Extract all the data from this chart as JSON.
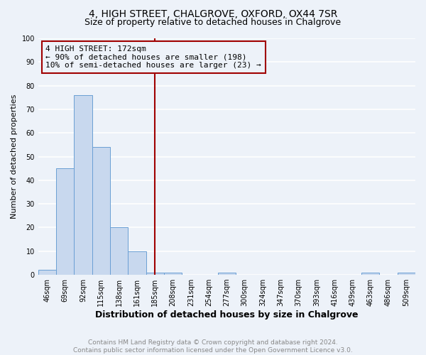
{
  "title": "4, HIGH STREET, CHALGROVE, OXFORD, OX44 7SR",
  "subtitle": "Size of property relative to detached houses in Chalgrove",
  "xlabel": "Distribution of detached houses by size in Chalgrove",
  "ylabel": "Number of detached properties",
  "bin_labels": [
    "46sqm",
    "69sqm",
    "92sqm",
    "115sqm",
    "138sqm",
    "161sqm",
    "185sqm",
    "208sqm",
    "231sqm",
    "254sqm",
    "277sqm",
    "300sqm",
    "324sqm",
    "347sqm",
    "370sqm",
    "393sqm",
    "416sqm",
    "439sqm",
    "463sqm",
    "486sqm",
    "509sqm"
  ],
  "bin_values": [
    2,
    45,
    76,
    54,
    20,
    10,
    1,
    1,
    0,
    0,
    1,
    0,
    0,
    0,
    0,
    0,
    0,
    0,
    1,
    0,
    1
  ],
  "bar_color": "#c8d8ee",
  "bar_edge_color": "#6a9fd4",
  "vline_x": 6.0,
  "vline_color": "#a00000",
  "annotation_line1": "4 HIGH STREET: 172sqm",
  "annotation_line2": "← 90% of detached houses are smaller (198)",
  "annotation_line3": "10% of semi-detached houses are larger (23) →",
  "annotation_box_color": "#a00000",
  "ylim": [
    0,
    100
  ],
  "yticks": [
    0,
    10,
    20,
    30,
    40,
    50,
    60,
    70,
    80,
    90,
    100
  ],
  "footer_text": "Contains HM Land Registry data © Crown copyright and database right 2024.\nContains public sector information licensed under the Open Government Licence v3.0.",
  "background_color": "#edf2f9",
  "grid_color": "#ffffff",
  "title_fontsize": 10,
  "subtitle_fontsize": 9,
  "xlabel_fontsize": 9,
  "ylabel_fontsize": 8,
  "tick_fontsize": 7,
  "annotation_fontsize": 8,
  "footer_fontsize": 6.5
}
